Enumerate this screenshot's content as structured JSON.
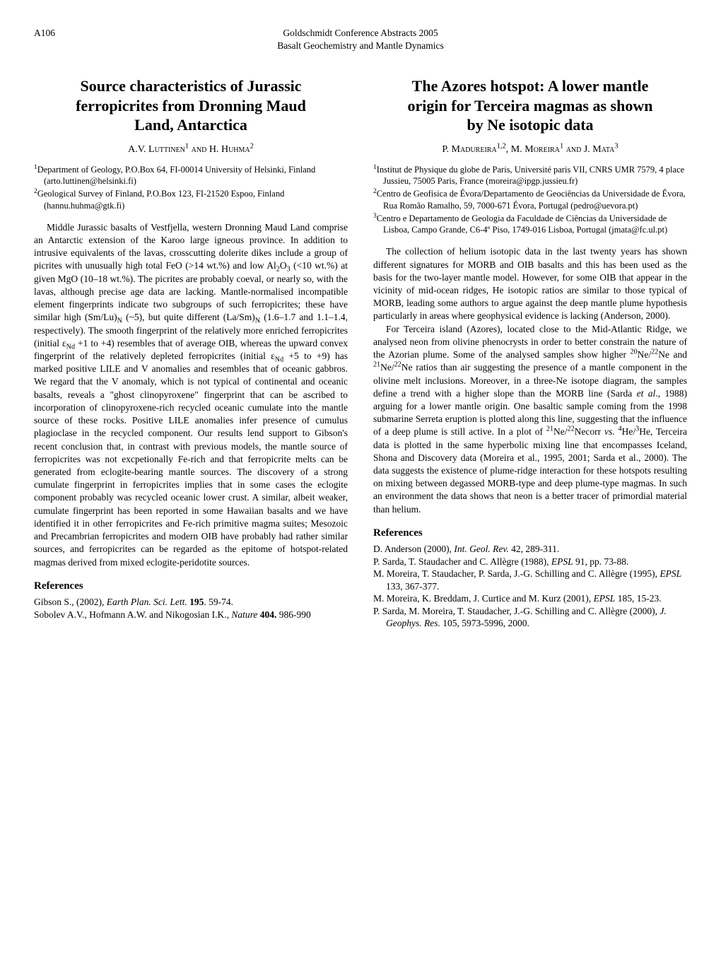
{
  "page_number": "A106",
  "running_head_line1": "Goldschmidt Conference Abstracts 2005",
  "running_head_line2": "Basalt Geochemistry and Mantle Dynamics",
  "left": {
    "title_l1": "Source characteristics of Jurassic",
    "title_l2": "ferropicrites from Dronning Maud",
    "title_l3": "Land, Antarctica",
    "authors_html": "A.V. L<span style='font-variant:small-caps'>uttinen</span><sup>1</sup> <span style='font-variant:small-caps'>and</span> H. H<span style='font-variant:small-caps'>uhma</span><sup>2</sup>",
    "affil1": "<sup>1</sup>Department of Geology, P.O.Box 64, FI-00014 University of Helsinki, Finland (arto.luttinen@helsinki.fi)",
    "affil2": "<sup>2</sup>Geological Survey of Finland, P.O.Box 123, FI-21520 Espoo, Finland (hannu.huhma@gtk.fi)",
    "body_html": "Middle Jurassic basalts of Vestfjella, western Dronning Maud Land comprise an Antarctic extension of the Karoo large igneous province. In addition to intrusive equivalents of the lavas, crosscutting dolerite dikes include a group of picrites with unusually high total FeO (&gt;14 wt.%) and low Al<sub>2</sub>O<sub>3</sub> (&lt;10 wt.%) at given MgO (10–18 wt.%). The picrites are probably coeval, or nearly so, with the lavas, although precise age data are lacking. Mantle-normalised incompatible element fingerprints indicate two subgroups of such ferropicrites; these have similar high (Sm/Lu)<sub>N</sub> (~5), but quite different (La/Sm)<sub>N</sub> (1.6–1.7 and 1.1–1.4, respectively). The smooth fingerprint of the relatively more enriched ferropicrites (initial ε<sub>Nd</sub> +1 to +4) resembles that of average OIB, whereas the upward convex fingerprint of the relatively depleted ferropicrites (initial ε<sub>Nd</sub> +5 to +9) has marked positive LILE and V anomalies and resembles that of oceanic gabbros. We regard that the V anomaly, which is not typical of continental and oceanic basalts, reveals a \"ghost clinopyroxene\" fingerprint that can be ascribed to incorporation of clinopyroxene-rich recycled oceanic cumulate into the mantle source of these rocks. Positive LILE anomalies infer presence of cumulus plagioclase in the recycled component. Our results lend support to Gibson's recent conclusion that, in contrast with previous models, the mantle source of ferropicrites was not excpetionally Fe-rich and that ferropicrite melts can be generated from eclogite-bearing mantle sources. The discovery of a strong cumulate fingerprint in ferropicrites implies that in some cases the eclogite component probably was recycled oceanic lower crust. A similar, albeit weaker, cumulate fingerprint has been reported in some Hawaiian basalts and we have identified it in other ferropicrites and Fe-rich primitive magma suites; Mesozoic and Precambrian ferropicrites and modern OIB have probably had rather similar sources, and ferropicrites can be regarded as the epitome of hotspot-related magmas derived from mixed eclogite-peridotite sources.",
    "refs_heading": "References",
    "ref1": "Gibson S., (2002), <span class='italic'>Earth Plan. Sci. Lett.</span> <b>195</b>. 59-74.",
    "ref2": "Sobolev A.V., Hofmann A.W. and Nikogosian I.K., <span class='italic'>Nature</span> <b>404.</b> 986-990"
  },
  "right": {
    "title_l1": "The Azores hotspot: A lower mantle",
    "title_l2": "origin for Terceira magmas as shown",
    "title_l3": "by Ne isotopic data",
    "authors_html": "P. M<span style='font-variant:small-caps'>adureira</span><sup>1,2</sup>, M. M<span style='font-variant:small-caps'>oreira</span><sup>1</sup> <span style='font-variant:small-caps'>and</span> J. M<span style='font-variant:small-caps'>ata</span><sup>3</sup>",
    "affil1": "<sup>1</sup>Institut de Physique du globe de Paris, Université paris VII, CNRS UMR 7579, 4 place Jussieu, 75005 Paris, France (moreira@ipgp.jussieu.fr)",
    "affil2": "<sup>2</sup>Centro de Geofísica de Évora/Departamento de Geociências da Universidade de Évora, Rua Romão Ramalho, 59, 7000-671 Évora, Portugal (pedro@uevora.pt)",
    "affil3": "<sup>3</sup>Centro e Departamento de Geologia da Faculdade de Ciências da Universidade de Lisboa, Campo Grande, C6-4º Piso, 1749-016 Lisboa, Portugal (jmata@fc.ul.pt)",
    "para1_html": "The collection of helium isotopic data in the last twenty years has shown different signatures for MORB and OIB basalts and this has been used as the basis for the two-layer mantle model. However, for some OIB that appear in the vicinity of mid-ocean ridges, He isotopic ratios are similar to those typical of MORB, leading some authors to argue against the deep mantle plume hypothesis particularly in areas where geophysical evidence is lacking (Anderson, 2000).",
    "para2_html": "For Terceira island (Azores), located close to the Mid-Atlantic Ridge, we analysed neon from olivine phenocrysts in order to better constrain the nature of the Azorian plume. Some of the analysed samples show higher <sup>20</sup>Ne/<sup>22</sup>Ne and <sup>21</sup>Ne/<sup>22</sup>Ne ratios than air suggesting the presence of a mantle component in the olivine melt inclusions. Moreover, in a three-Ne isotope diagram, the samples define a trend with a higher slope than the MORB line (Sarda <span class='italic'>et al</span>., 1988) arguing for a lower mantle origin. One basaltic sample coming from the 1998 submarine Serreta eruption is plotted along this line, suggesting that the influence of a deep plume is still active. In a plot of <sup>21</sup>Ne/<sup>22</sup>Necorr <span class='italic'>vs.</span> <sup>4</sup>He/<sup>3</sup>He, Terceira data is plotted in the same hyperbolic mixing line that encompasses Iceland, Shona and Discovery data (Moreira et al., 1995, 2001; Sarda et al., 2000). The data suggests the existence of plume-ridge interaction for these hotspots resulting on mixing between degassed MORB-type and deep plume-type magmas. In such an environment the data shows that neon is a better tracer of primordial material than helium.",
    "refs_heading": "References",
    "ref1": "D. Anderson (2000), <span class='italic'>Int. Geol. Rev.</span> 42, 289-311.",
    "ref2": "P. Sarda, T. Staudacher and C. Allègre (1988), <span class='italic'>EPSL</span> 91, pp. 73-88.",
    "ref3": "M. Moreira, T. Staudacher, P. Sarda, J.-G. Schilling and C. Allègre (1995), <span class='italic'>EPSL</span> 133, 367-377.",
    "ref4": "M. Moreira, K. Breddam, J. Curtice and M. Kurz (2001), <span class='italic'>EPSL</span> 185, 15-23.",
    "ref5": "P. Sarda, M. Moreira, T. Staudacher, J.-G. Schilling and C. Allègre (2000), <span class='italic'>J. Geophys. Res.</span> 105, 5973-5996, 2000."
  }
}
